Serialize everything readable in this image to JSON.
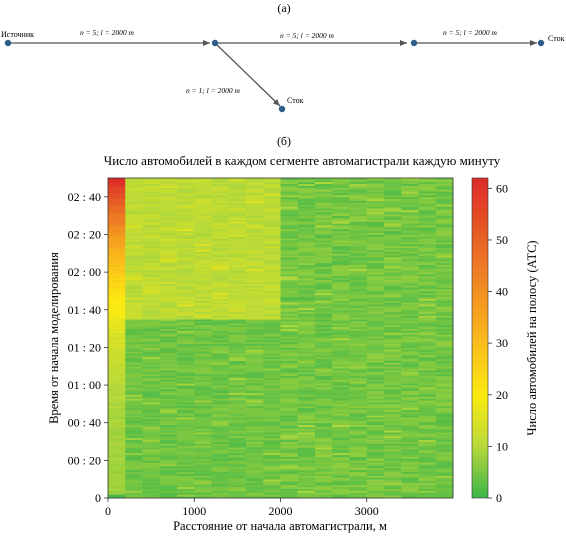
{
  "panel_a": {
    "label": "(а)",
    "nodes": {
      "source": "Источник",
      "sink1": "Сток",
      "sink2": "Сток"
    },
    "edges": {
      "e1": "n = 5; l = 2000 m",
      "e2": "n = 5; l = 2000 m",
      "e3": "n = 5; l = 2000 m",
      "e4": "n = 1; l = 2000 m"
    },
    "colors": {
      "edge": "#555555",
      "node": "#2f5d8a"
    }
  },
  "panel_b": {
    "label": "(б)"
  },
  "chart_data": {
    "type": "heatmap",
    "title": "Число автомобилей в каждом сегменте автомагистрали каждую минуту",
    "xlabel": "Расстояние от начала автомагистрали, м",
    "ylabel": "Время от начала моделирования",
    "xlim": [
      0,
      4000
    ],
    "ylim": [
      0,
      170
    ],
    "xticks": [
      0,
      1000,
      2000,
      3000
    ],
    "yticks": [
      0,
      20,
      40,
      60,
      80,
      100,
      120,
      140,
      160
    ],
    "yticklabels": [
      "0",
      "00 : 20",
      "00 : 40",
      "01 : 00",
      "01 : 20",
      "01 : 40",
      "02 : 00",
      "02 : 20",
      "02 : 40"
    ],
    "colorbar": {
      "label": "Число автомобилей на полосу (АТС)",
      "range": [
        0,
        62
      ],
      "ticks": [
        0,
        10,
        20,
        30,
        40,
        50,
        60
      ],
      "colors": [
        "#3cb54a",
        "#b6d93a",
        "#fcea10",
        "#f9b81d",
        "#ee7a24",
        "#dc2a28"
      ]
    },
    "segment_length_m": 200,
    "regions": [
      {
        "x": [
          0,
          200
        ],
        "t": [
          0,
          170
        ],
        "values_min_max": [
          8,
          62
        ]
      },
      {
        "x": [
          200,
          2000
        ],
        "t": [
          0,
          95
        ],
        "values_min_max": [
          2,
          6
        ]
      },
      {
        "x": [
          200,
          2000
        ],
        "t": [
          95,
          170
        ],
        "values_min_max": [
          9,
          13
        ]
      },
      {
        "x": [
          2000,
          4000
        ],
        "t": [
          0,
          170
        ],
        "values_min_max": [
          2,
          7
        ]
      }
    ]
  }
}
